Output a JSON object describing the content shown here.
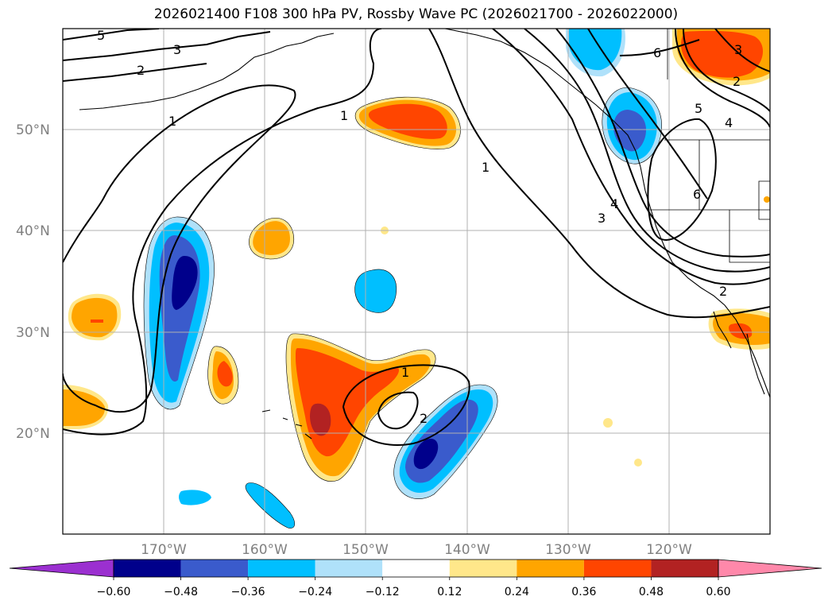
{
  "title": "2026021400 F108 300 hPa PV, Rossby Wave PC (2026021700 - 2026022000)",
  "chart_data": {
    "type": "map",
    "variable": "300 hPa PV, Rossby Wave PC",
    "init": "2026021400",
    "forecast_hour": "F108",
    "period": "2026021700 - 2026022000",
    "lat_ticks": [
      {
        "value": 50,
        "label": "50°N"
      },
      {
        "value": 40,
        "label": "40°N"
      },
      {
        "value": 30,
        "label": "30°N"
      },
      {
        "value": 20,
        "label": "20°N"
      }
    ],
    "lon_ticks": [
      {
        "value": -170,
        "label": "170°W"
      },
      {
        "value": -160,
        "label": "160°W"
      },
      {
        "value": -150,
        "label": "150°W"
      },
      {
        "value": -140,
        "label": "140°W"
      },
      {
        "value": -130,
        "label": "130°W"
      },
      {
        "value": -120,
        "label": "120°W"
      }
    ],
    "extent": {
      "lon": [
        -180,
        -110
      ],
      "lat": [
        10,
        60
      ]
    },
    "colorbar": {
      "levels": [
        -0.6,
        -0.48,
        -0.36,
        -0.24,
        -0.12,
        0.12,
        0.24,
        0.36,
        0.48,
        0.6
      ],
      "tick_labels": [
        "−0.60",
        "−0.48",
        "−0.36",
        "−0.24",
        "−0.12",
        "0.12",
        "0.24",
        "0.36",
        "0.48",
        "0.60"
      ],
      "colors": [
        "#9b30d0",
        "#00008b",
        "#3a5bcc",
        "#00bfff",
        "#afe1fa",
        "#ffffff",
        "#ffe78a",
        "#ffa500",
        "#ff4500",
        "#b22222",
        "#ff88aa"
      ]
    },
    "contour_labels": [
      "5",
      "3",
      "2",
      "1",
      "1",
      "1",
      "1",
      "2",
      "3",
      "4",
      "5",
      "6",
      "6",
      "4",
      "3",
      "2",
      "2"
    ],
    "anomaly_colors": {
      "positive_weak": "#ffe78a",
      "positive_mid": "#ffa500",
      "positive_strong": "#ff4500",
      "positive_max": "#b22222",
      "negative_weak": "#afe1fa",
      "negative_mid": "#00bfff",
      "negative_strong": "#3a5bcc",
      "negative_max": "#00008b"
    }
  }
}
